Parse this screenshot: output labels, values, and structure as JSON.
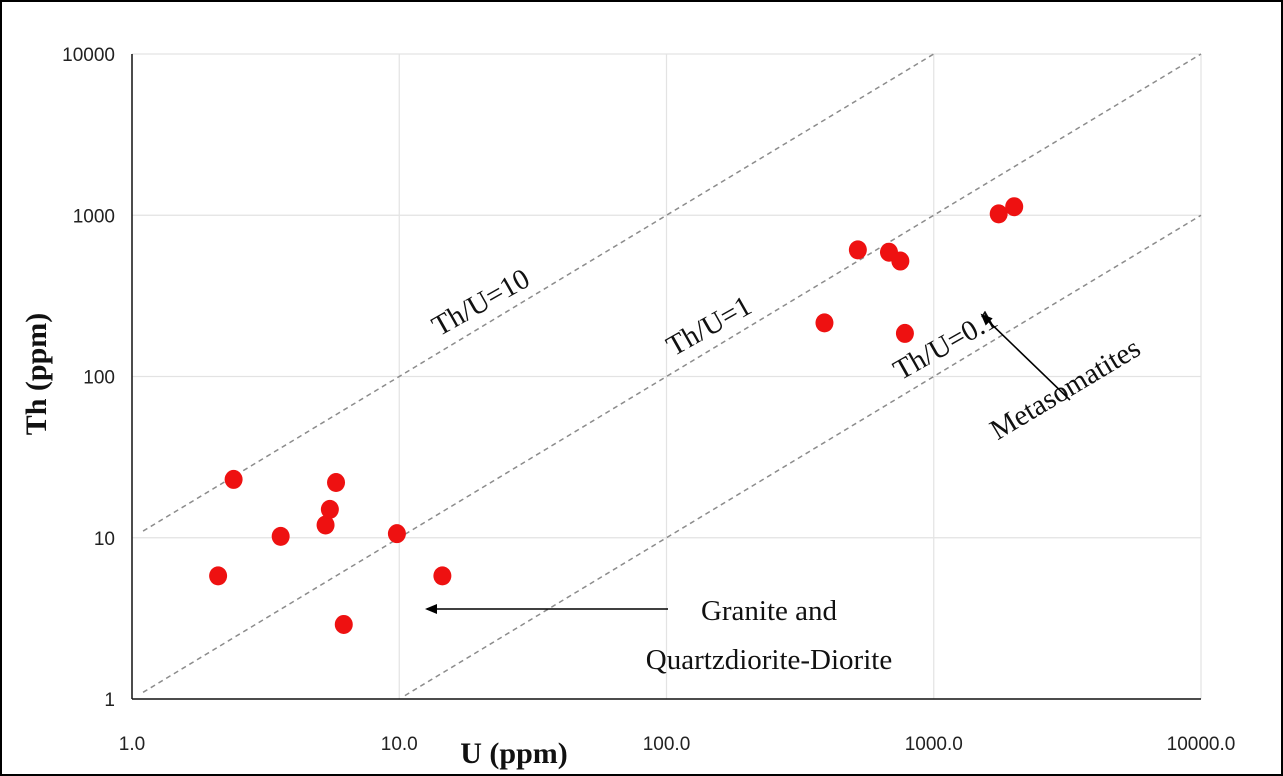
{
  "chart_data": {
    "type": "scatter",
    "title": "",
    "xlabel": "U (ppm)",
    "ylabel": "Th (ppm)",
    "xscale": "log",
    "yscale": "log",
    "xlim": [
      1,
      10000
    ],
    "ylim": [
      1,
      10000
    ],
    "x_tick_labels": [
      "1.0",
      "10.0",
      "100.0",
      "1000.0",
      "10000.0"
    ],
    "y_tick_labels": [
      "1",
      "10",
      "100",
      "1000",
      "10000"
    ],
    "grid": true,
    "marker_color": "#ee1111",
    "series": [
      {
        "points": [
          {
            "x": 2.1,
            "y": 5.8
          },
          {
            "x": 2.4,
            "y": 23
          },
          {
            "x": 3.6,
            "y": 10.2
          },
          {
            "x": 5.3,
            "y": 12
          },
          {
            "x": 5.5,
            "y": 15
          },
          {
            "x": 5.8,
            "y": 22
          },
          {
            "x": 6.2,
            "y": 2.9
          },
          {
            "x": 9.8,
            "y": 10.6
          },
          {
            "x": 14.5,
            "y": 5.8
          },
          {
            "x": 390,
            "y": 215
          },
          {
            "x": 520,
            "y": 610
          },
          {
            "x": 680,
            "y": 590
          },
          {
            "x": 750,
            "y": 520
          },
          {
            "x": 780,
            "y": 185
          },
          {
            "x": 1750,
            "y": 1020
          },
          {
            "x": 2000,
            "y": 1130
          }
        ]
      }
    ],
    "reference_lines": [
      {
        "label": "Th/U=10",
        "ratio": 10,
        "x_range": [
          1.1,
          1000
        ]
      },
      {
        "label": "Th/U=1",
        "ratio": 1,
        "x_range": [
          1.1,
          10000
        ]
      },
      {
        "label": "Th/U=0.1",
        "ratio": 0.1,
        "x_range": [
          10.5,
          10000
        ]
      }
    ],
    "annotations": [
      {
        "text": "Metasomatites",
        "arrow": true
      },
      {
        "text_lines": [
          "Granite and",
          "Quartzdiorite-Diorite"
        ],
        "arrow": true
      }
    ]
  }
}
